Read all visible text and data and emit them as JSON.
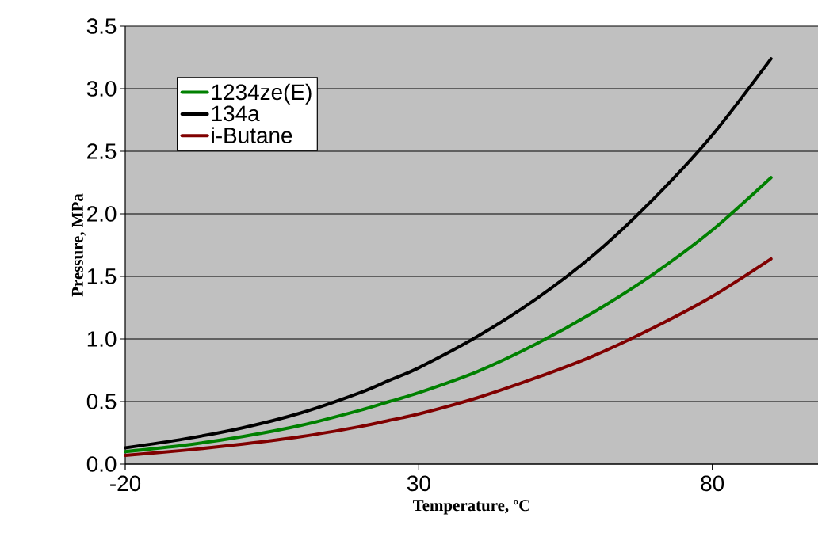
{
  "chart_data": {
    "type": "line",
    "xlabel": "Temperature, ºC",
    "ylabel": "Pressure, MPa",
    "x": [
      -20,
      -10,
      0,
      10,
      20,
      25,
      30,
      40,
      50,
      60,
      70,
      80,
      90
    ],
    "series": [
      {
        "name": "1234ze(E)",
        "color": "#008000",
        "values": [
          0.1,
          0.15,
          0.22,
          0.31,
          0.43,
          0.5,
          0.57,
          0.74,
          0.96,
          1.22,
          1.52,
          1.87,
          2.29
        ]
      },
      {
        "name": "134a",
        "color": "#000000",
        "values": [
          0.13,
          0.2,
          0.29,
          0.41,
          0.57,
          0.67,
          0.77,
          1.02,
          1.32,
          1.68,
          2.12,
          2.63,
          3.24
        ]
      },
      {
        "name": "i-Butane",
        "color": "#800000",
        "values": [
          0.07,
          0.11,
          0.16,
          0.22,
          0.3,
          0.35,
          0.4,
          0.53,
          0.69,
          0.87,
          1.09,
          1.34,
          1.64
        ]
      }
    ],
    "xlim": [
      -20,
      98
    ],
    "xticks": [
      -20,
      30,
      80
    ],
    "ylim": [
      0,
      3.5
    ],
    "yticks": [
      {
        "value": 0,
        "label": "0.0"
      },
      {
        "value": 0.5,
        "label": "0.5"
      },
      {
        "value": 1,
        "label": "1.0"
      },
      {
        "value": 1.5,
        "label": "1.5"
      },
      {
        "value": 2,
        "label": "2.0"
      },
      {
        "value": 2.5,
        "label": "2.5"
      },
      {
        "value": 3,
        "label": "3.0"
      },
      {
        "value": 3.5,
        "label": "3.5"
      }
    ],
    "grid": "y",
    "legend": "top left",
    "marker": "none",
    "line_style": "solid"
  }
}
